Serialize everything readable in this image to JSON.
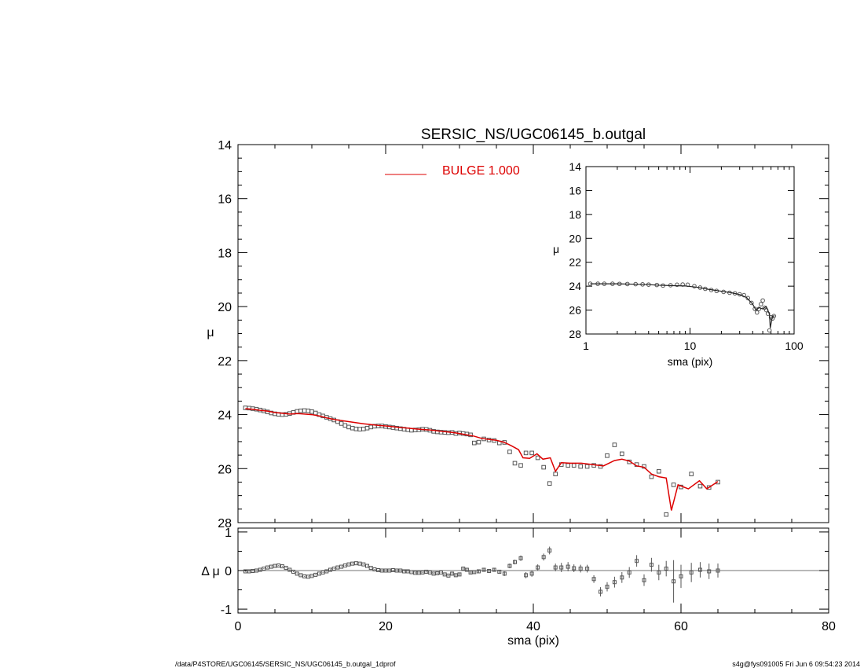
{
  "title": "SERSIC_NS/UGC06145_b.outgal",
  "footer": {
    "path": "/data/P4STORE/UGC06145/SERSIC_NS/UGC06145_b.outgal_1dprof",
    "stamp": "s4g@fys091005  Fri Jun  6 09:54:23 2014"
  },
  "colors": {
    "model": "#dd0000",
    "data": "#555555",
    "axes": "#000000"
  },
  "chart_data": [
    {
      "id": "main-profile",
      "type": "scatter",
      "ylabel": "μ",
      "xlim": [
        0,
        80
      ],
      "ylim": [
        28,
        14
      ],
      "y_inverted": true,
      "yticks": [
        14,
        16,
        18,
        20,
        22,
        24,
        26,
        28
      ],
      "legend": {
        "label": "BULGE  1.000",
        "placement": "top-center"
      },
      "series": [
        {
          "role": "observed",
          "x": [
            1,
            1.5,
            2,
            2.5,
            3,
            3.5,
            4,
            4.5,
            5,
            5.5,
            6,
            6.5,
            7,
            7.5,
            8,
            8.5,
            9,
            9.5,
            10,
            10.5,
            11,
            11.5,
            12,
            12.5,
            13,
            13.5,
            14,
            14.5,
            15,
            15.5,
            16,
            16.5,
            17,
            17.5,
            18,
            18.5,
            19,
            19.5,
            20,
            20.5,
            21,
            21.5,
            22,
            22.5,
            23,
            23.5,
            24,
            24.5,
            25,
            25.5,
            26,
            26.5,
            27,
            27.5,
            28,
            28.5,
            29,
            29.5,
            30,
            30.5,
            31,
            31.5,
            32,
            32.6,
            33.3,
            34,
            34.7,
            35.4,
            36.1,
            36.8,
            37.5,
            38.3,
            39,
            39.8,
            40.6,
            41.4,
            42.2,
            43,
            43.8,
            44.7,
            45.5,
            46.4,
            47.3,
            48.2,
            49.1,
            50,
            51,
            52,
            53,
            54,
            55,
            56,
            57,
            58,
            59,
            60,
            61.4,
            62.6,
            63.8,
            65
          ],
          "y": [
            23.75,
            23.76,
            23.78,
            23.8,
            23.83,
            23.86,
            23.9,
            23.94,
            23.97,
            23.99,
            24,
            23.99,
            23.96,
            23.92,
            23.88,
            23.86,
            23.85,
            23.86,
            23.89,
            23.94,
            24,
            24.05,
            24.1,
            24.15,
            24.2,
            24.26,
            24.33,
            24.4,
            24.46,
            24.5,
            24.53,
            24.54,
            24.53,
            24.5,
            24.46,
            24.43,
            24.42,
            24.42,
            24.44,
            24.46,
            24.48,
            24.5,
            24.52,
            24.54,
            24.56,
            24.58,
            24.57,
            24.56,
            24.54,
            24.55,
            24.58,
            24.62,
            24.64,
            24.65,
            24.66,
            24.67,
            24.66,
            24.7,
            24.68,
            24.7,
            24.72,
            24.75,
            25.05,
            25.02,
            24.9,
            24.94,
            24.96,
            25.05,
            25.03,
            25.38,
            25.8,
            25.88,
            25.42,
            25.42,
            25.6,
            25.95,
            26.55,
            26.2,
            25.85,
            25.88,
            25.88,
            25.92,
            25.92,
            25.88,
            25.92,
            25.52,
            25.12,
            25.45,
            25.75,
            25.85,
            25.92,
            26.3,
            26.1,
            27.7,
            26.6,
            26.68,
            26.2,
            26.65,
            26.7,
            26.5
          ]
        },
        {
          "role": "model",
          "name": "BULGE  1.000",
          "x": [
            1,
            2,
            3,
            4,
            5,
            6,
            7,
            8,
            9,
            10,
            11,
            12,
            13,
            14,
            15,
            16,
            17,
            18,
            19,
            20,
            21,
            22,
            23,
            24,
            25,
            26,
            27,
            28,
            29,
            30,
            31,
            32,
            33,
            34,
            35,
            36,
            37,
            38,
            38.6,
            39.5,
            40.5,
            41.3,
            42.3,
            43,
            43.8,
            45,
            46.5,
            48,
            49.5,
            51,
            52,
            53,
            54,
            55,
            56,
            57,
            58,
            58.7,
            59.6,
            61,
            62.5,
            63.5,
            65
          ],
          "y": [
            23.78,
            23.8,
            23.84,
            23.87,
            23.92,
            23.95,
            23.98,
            23.96,
            23.98,
            24,
            24.05,
            24.12,
            24.18,
            24.22,
            24.26,
            24.3,
            24.34,
            24.37,
            24.4,
            24.42,
            24.45,
            24.48,
            24.5,
            24.53,
            24.55,
            24.57,
            24.6,
            24.63,
            24.66,
            24.7,
            24.75,
            24.8,
            24.88,
            24.92,
            24.95,
            25.02,
            25.15,
            25.3,
            25.6,
            25.62,
            25.45,
            25.65,
            25.6,
            26.1,
            25.78,
            25.8,
            25.8,
            25.85,
            25.9,
            25.7,
            25.65,
            25.72,
            25.9,
            25.95,
            26.2,
            26.3,
            26.35,
            27.55,
            26.6,
            26.75,
            26.45,
            26.75,
            26.48
          ]
        }
      ]
    },
    {
      "id": "inset-loglog",
      "type": "scatter",
      "xlabel": "sma (pix)",
      "ylabel": "μ",
      "x_scale": "log",
      "xlim": [
        1,
        100
      ],
      "xticks": [
        1,
        10,
        100
      ],
      "ylim": [
        28,
        14
      ],
      "y_inverted": true,
      "yticks": [
        14,
        16,
        18,
        20,
        22,
        24,
        26,
        28
      ],
      "series": [
        {
          "role": "observed",
          "x": [
            1.1,
            1.3,
            1.5,
            1.8,
            2.1,
            2.5,
            3,
            3.5,
            4,
            4.8,
            5.5,
            6.5,
            7.5,
            8.5,
            9.5,
            11,
            12.5,
            14,
            16,
            18,
            21,
            24,
            27,
            30,
            33,
            36,
            39,
            42,
            44,
            46,
            48,
            50,
            52,
            54,
            56,
            58,
            60,
            62,
            64
          ],
          "y": [
            23.8,
            23.8,
            23.8,
            23.8,
            23.81,
            23.82,
            23.83,
            23.85,
            23.87,
            23.9,
            23.95,
            23.92,
            23.88,
            23.86,
            23.88,
            24.0,
            24.12,
            24.22,
            24.32,
            24.4,
            24.48,
            24.55,
            24.6,
            24.68,
            24.75,
            25.0,
            25.4,
            25.9,
            26.2,
            25.9,
            25.5,
            25.2,
            25.8,
            26.0,
            26.3,
            27.7,
            26.6,
            26.7,
            26.5
          ]
        },
        {
          "role": "model",
          "x": [
            1.1,
            2,
            3,
            4,
            5,
            7,
            9,
            12,
            15,
            20,
            25,
            30,
            35,
            38,
            40,
            43,
            46,
            50,
            54,
            58,
            59,
            62,
            65
          ],
          "y": [
            23.8,
            23.8,
            23.84,
            23.87,
            23.92,
            23.96,
            23.98,
            24.1,
            24.26,
            24.42,
            24.55,
            24.7,
            24.95,
            25.3,
            25.5,
            26.0,
            25.8,
            25.9,
            25.7,
            26.35,
            27.5,
            26.5,
            26.48
          ]
        }
      ]
    },
    {
      "id": "residuals",
      "type": "scatter",
      "xlabel": "sma (pix)",
      "ylabel": "Δ μ",
      "xlim": [
        0,
        80
      ],
      "xticks": [
        0,
        20,
        40,
        60,
        80
      ],
      "ylim": [
        -1.1,
        1.1
      ],
      "yticks": [
        -1,
        0,
        1
      ],
      "series": [
        {
          "role": "residual",
          "x": [
            1,
            1.5,
            2,
            2.5,
            3,
            3.5,
            4,
            4.5,
            5,
            5.5,
            6,
            6.5,
            7,
            7.5,
            8,
            8.5,
            9,
            9.5,
            10,
            10.5,
            11,
            11.5,
            12,
            12.5,
            13,
            13.5,
            14,
            14.5,
            15,
            15.5,
            16,
            16.5,
            17,
            17.5,
            18,
            18.5,
            19,
            19.5,
            20,
            20.5,
            21,
            21.5,
            22,
            22.5,
            23,
            23.5,
            24,
            24.5,
            25,
            25.5,
            26,
            26.5,
            27,
            27.5,
            28,
            28.5,
            29,
            29.5,
            30,
            30.5,
            31,
            31.5,
            32,
            32.6,
            33.3,
            34,
            34.7,
            35.4,
            36.1,
            36.8,
            37.5,
            38.3,
            39,
            39.8,
            40.6,
            41.4,
            42.2,
            43,
            43.8,
            44.7,
            45.5,
            46.4,
            47.3,
            48.2,
            49.1,
            50,
            51,
            52,
            53,
            54,
            55,
            56,
            57,
            58,
            59,
            60,
            61.4,
            62.6,
            63.8,
            65
          ],
          "y": [
            -0.02,
            -0.02,
            -0.01,
            0,
            0.02,
            0.05,
            0.08,
            0.1,
            0.12,
            0.13,
            0.11,
            0.07,
            0.02,
            -0.03,
            -0.08,
            -0.12,
            -0.15,
            -0.16,
            -0.14,
            -0.11,
            -0.08,
            -0.05,
            -0.02,
            0.02,
            0.05,
            0.08,
            0.1,
            0.13,
            0.16,
            0.18,
            0.19,
            0.18,
            0.16,
            0.12,
            0.07,
            0.03,
            0.01,
            0,
            0,
            0,
            0.01,
            0,
            0,
            -0.02,
            -0.02,
            -0.04,
            -0.06,
            -0.06,
            -0.05,
            -0.03,
            -0.05,
            -0.08,
            -0.07,
            -0.05,
            -0.1,
            -0.13,
            -0.08,
            -0.12,
            -0.1,
            0.05,
            0.02,
            -0.05,
            -0.04,
            -0.02,
            0.02,
            -0.01,
            0.02,
            -0.03,
            -0.08,
            0.12,
            0.22,
            0.32,
            -0.12,
            -0.08,
            0.08,
            0.35,
            0.52,
            0.08,
            0.08,
            0.1,
            0.06,
            0.05,
            0.05,
            -0.22,
            -0.55,
            -0.42,
            -0.3,
            -0.18,
            -0.05,
            0.25,
            -0.25,
            0.15,
            -0.05,
            0.05,
            -0.28,
            -0.15,
            -0.05,
            0.02,
            -0.02,
            0.0
          ],
          "yerr": [
            0.01,
            0.01,
            0.01,
            0.01,
            0.01,
            0.01,
            0.01,
            0.01,
            0.01,
            0.01,
            0.01,
            0.01,
            0.01,
            0.01,
            0.01,
            0.01,
            0.01,
            0.01,
            0.01,
            0.01,
            0.01,
            0.01,
            0.01,
            0.01,
            0.01,
            0.01,
            0.01,
            0.01,
            0.01,
            0.01,
            0.01,
            0.01,
            0.01,
            0.01,
            0.01,
            0.01,
            0.01,
            0.01,
            0.01,
            0.01,
            0.01,
            0.01,
            0.01,
            0.01,
            0.01,
            0.01,
            0.02,
            0.02,
            0.02,
            0.02,
            0.02,
            0.02,
            0.02,
            0.02,
            0.02,
            0.02,
            0.03,
            0.03,
            0.03,
            0.03,
            0.03,
            0.03,
            0.04,
            0.04,
            0.04,
            0.05,
            0.05,
            0.05,
            0.06,
            0.06,
            0.06,
            0.07,
            0.08,
            0.08,
            0.08,
            0.09,
            0.1,
            0.1,
            0.12,
            0.12,
            0.1,
            0.1,
            0.1,
            0.1,
            0.12,
            0.12,
            0.14,
            0.14,
            0.14,
            0.15,
            0.15,
            0.18,
            0.2,
            0.2,
            0.55,
            0.3,
            0.25,
            0.2,
            0.2,
            0.18
          ]
        }
      ]
    }
  ]
}
